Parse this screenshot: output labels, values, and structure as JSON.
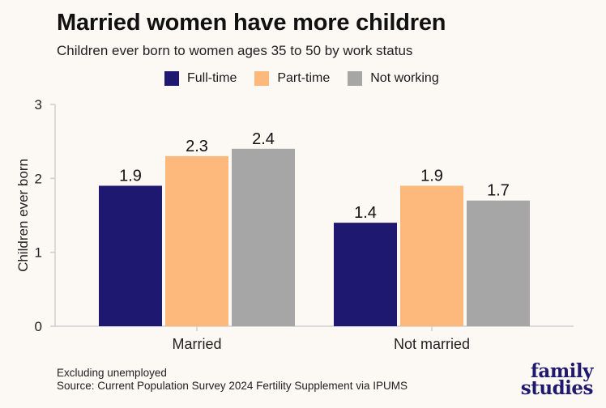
{
  "title": "Married women have more children",
  "subtitle": "Children ever born to women ages 35 to 50 by work status",
  "footnote_line1": "Excluding unemployed",
  "footnote_line2": "Source: Current Population Survey 2024 Fertility Supplement via IPUMS",
  "logo_line1": "family",
  "logo_line2": "studies",
  "chart_data": {
    "type": "bar",
    "title": "Married women have more children",
    "subtitle": "Children ever born to women ages 35 to 50 by work status",
    "xlabel": "",
    "ylabel": "Children ever born",
    "ylim": [
      0,
      3
    ],
    "yticks": [
      "0",
      "1",
      "2",
      "3"
    ],
    "grid": false,
    "legend_position": "top",
    "categories": [
      "Married",
      "Not married"
    ],
    "series": [
      {
        "name": "Full-time",
        "color": "#1f1870",
        "values": [
          1.9,
          1.4
        ],
        "labels": [
          "1.9",
          "1.4"
        ]
      },
      {
        "name": "Part-time",
        "color": "#fdb87b",
        "values": [
          2.3,
          1.9
        ],
        "labels": [
          "2.3",
          "1.9"
        ]
      },
      {
        "name": "Not working",
        "color": "#a6a6a6",
        "values": [
          2.4,
          1.7
        ],
        "labels": [
          "2.4",
          "1.7"
        ]
      }
    ]
  }
}
